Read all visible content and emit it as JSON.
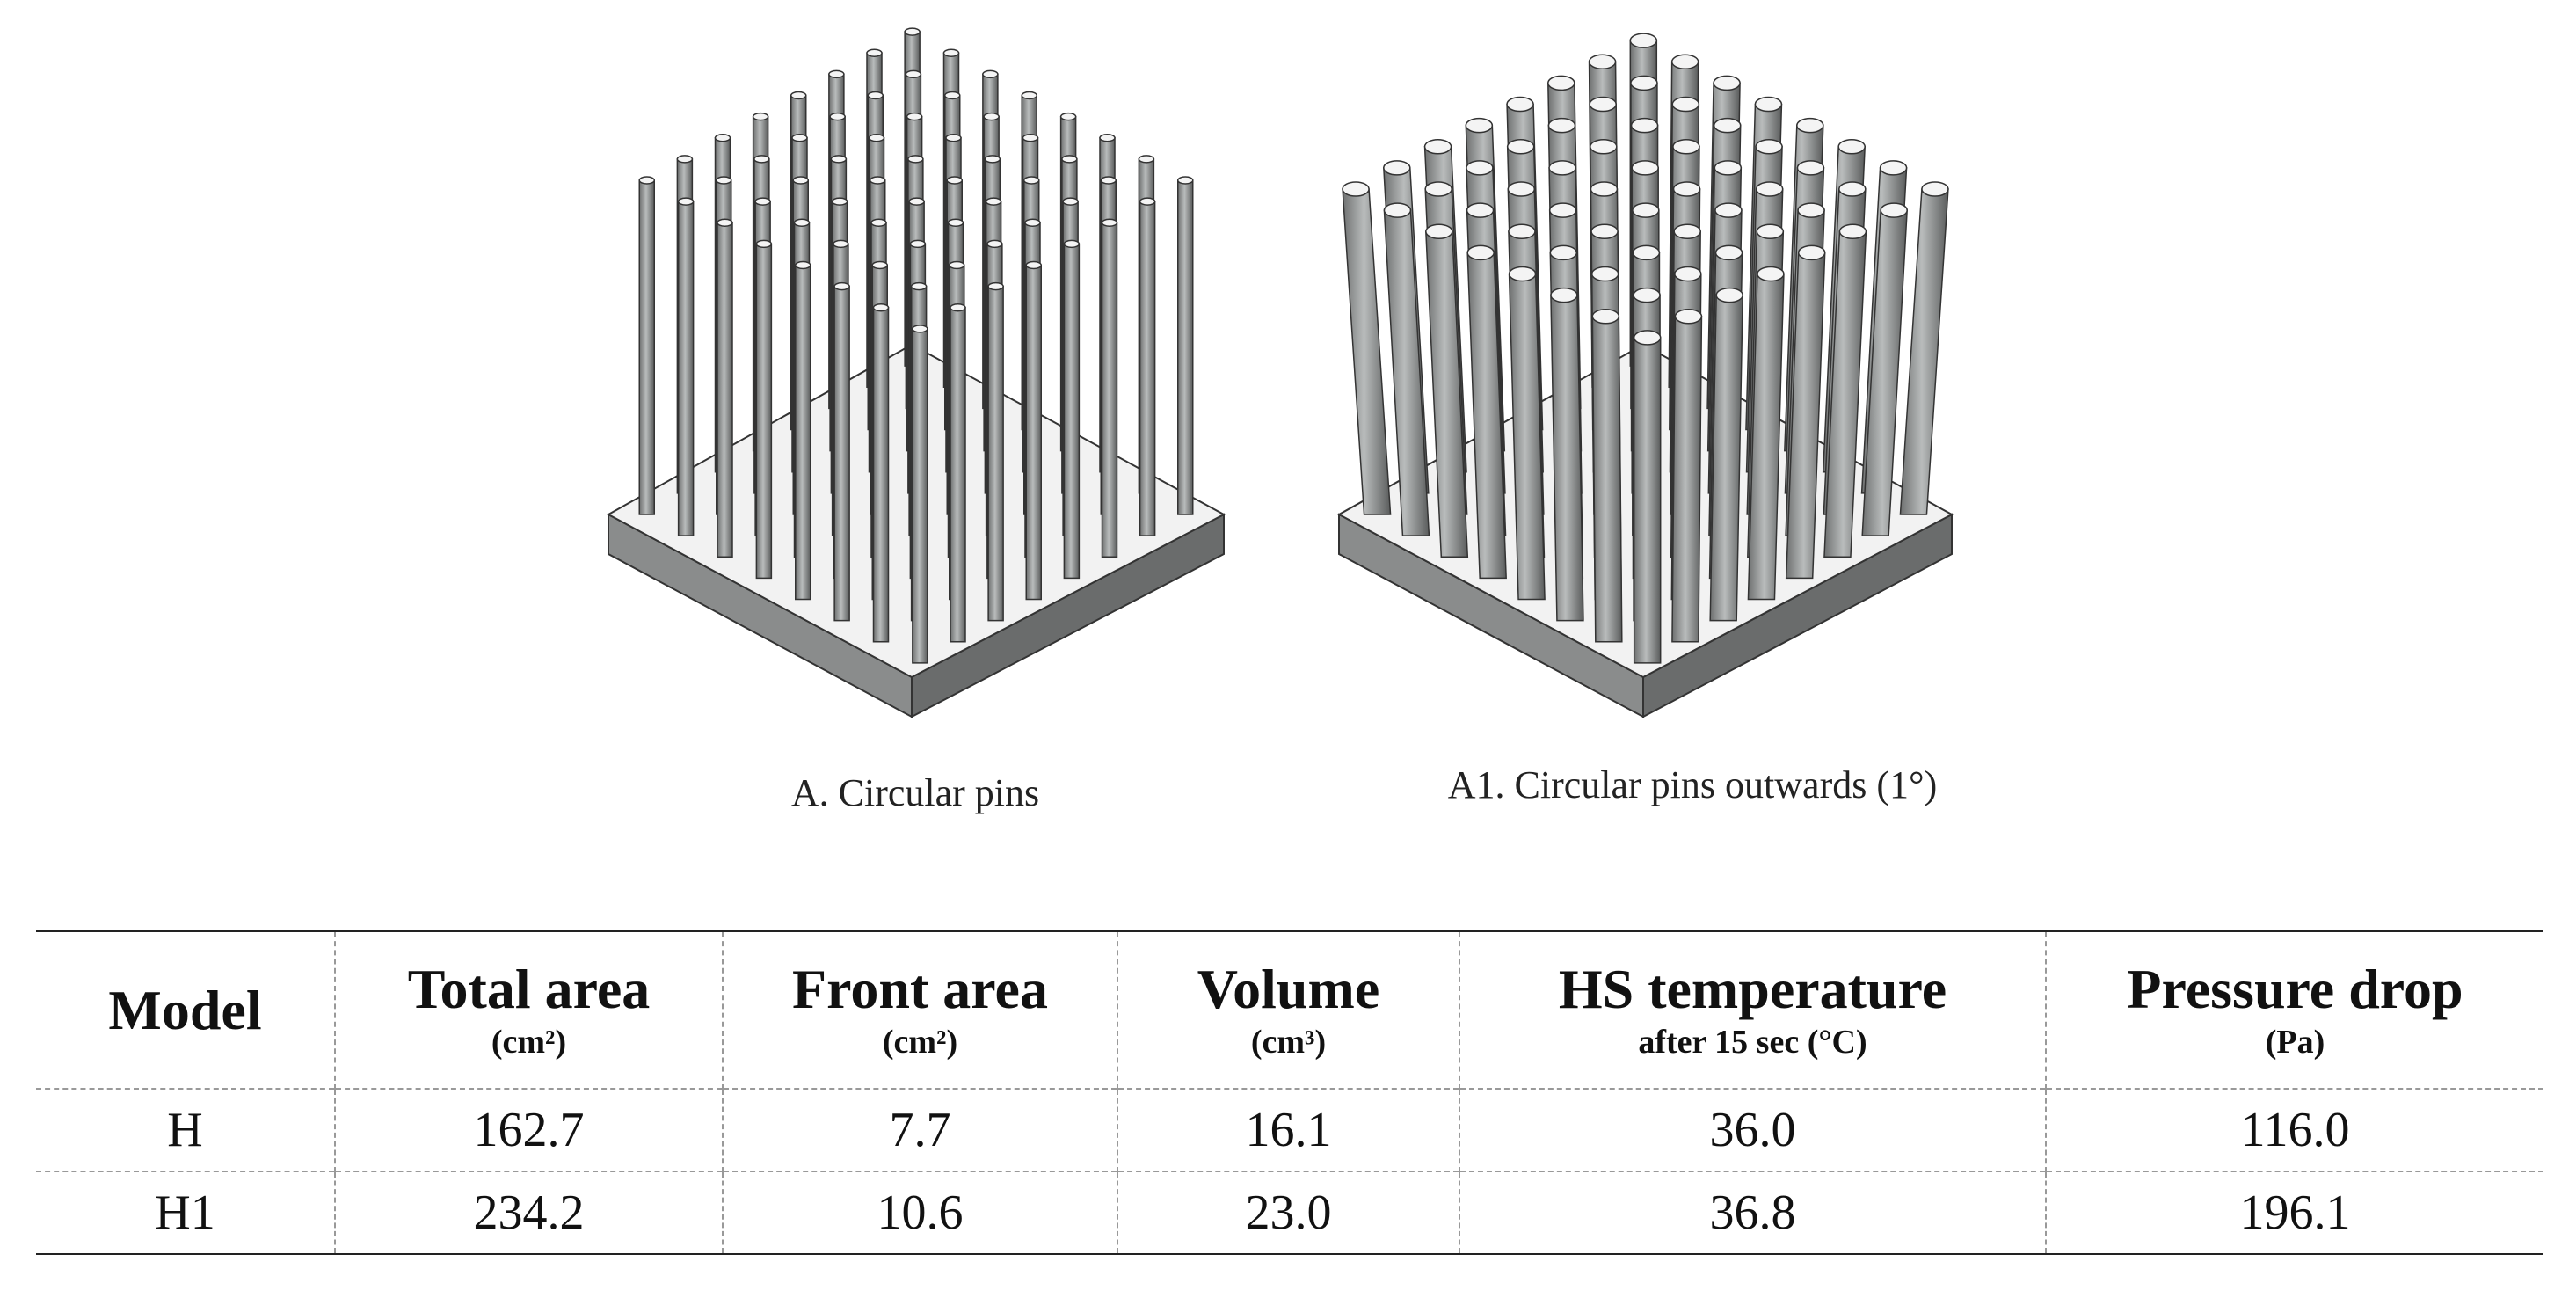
{
  "figures": [
    {
      "caption": "A. Circular pins"
    },
    {
      "caption": "A1. Circular pins outwards (1°)"
    }
  ],
  "table": {
    "columns": [
      {
        "title": "Model"
      },
      {
        "title": "Total area",
        "unit": "(cm²)"
      },
      {
        "title": "Front area",
        "unit": "(cm²)"
      },
      {
        "title": "Volume",
        "unit": "(cm³)"
      },
      {
        "title": "HS temperature",
        "unit": "after 15 sec (°C)"
      },
      {
        "title": "Pressure drop",
        "unit": "(Pa)"
      }
    ],
    "rows": [
      [
        "H",
        "162.7",
        "7.7",
        "16.1",
        "36.0",
        "116.0"
      ],
      [
        "H1",
        "234.2",
        "10.6",
        "23.0",
        "36.8",
        "196.1"
      ]
    ]
  }
}
